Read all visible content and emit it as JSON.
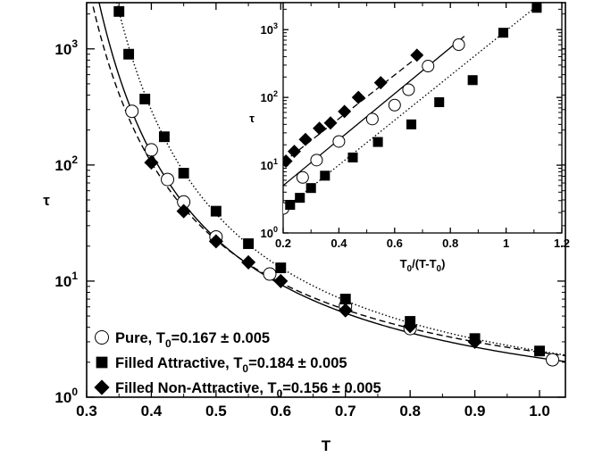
{
  "chart_data": [
    {
      "type": "scatter",
      "role": "main",
      "xlabel": "T",
      "ylabel": "τ",
      "xlim": [
        0.3,
        1.04
      ],
      "ylim": [
        1,
        2500
      ],
      "y_scale": "log",
      "x_ticks": [
        "0.3",
        "0.4",
        "0.5",
        "0.6",
        "0.7",
        "0.8",
        "0.9",
        "1.0"
      ],
      "x_tick_values": [
        0.3,
        0.4,
        0.5,
        0.6,
        0.7,
        0.8,
        0.9,
        1.0
      ],
      "y_ticks": [
        {
          "value": 1,
          "base": "10",
          "exp": "0"
        },
        {
          "value": 10,
          "base": "10",
          "exp": "1"
        },
        {
          "value": 100,
          "base": "10",
          "exp": "2"
        },
        {
          "value": 1000,
          "base": "10",
          "exp": "3"
        }
      ],
      "legend_position": "bottom-left",
      "grid": false,
      "series": [
        {
          "key": "pure",
          "marker": "open-circle",
          "curve": "solid",
          "legend": {
            "prefix": "Pure, T",
            "sub": "0",
            "suffix": "=0.167 ± 0.005"
          },
          "T0": 0.167,
          "x": [
            0.37,
            0.4,
            0.425,
            0.45,
            0.5,
            0.583,
            0.7,
            0.8,
            1.02
          ],
          "y": [
            290,
            135,
            75,
            48,
            24,
            11.5,
            6.1,
            3.9,
            2.1
          ]
        },
        {
          "key": "filled-attractive",
          "marker": "filled-square",
          "curve": "dotted",
          "legend": {
            "prefix": "Filled Attractive, T",
            "sub": "0",
            "suffix": "=0.184 ± 0.005"
          },
          "T0": 0.184,
          "x": [
            0.35,
            0.365,
            0.39,
            0.42,
            0.45,
            0.5,
            0.55,
            0.6,
            0.7,
            0.8,
            0.9,
            1.0
          ],
          "y": [
            2100,
            900,
            370,
            175,
            85,
            40,
            21,
            13,
            7,
            4.5,
            3.2,
            2.5
          ]
        },
        {
          "key": "filled-non-attractive",
          "marker": "filled-diamond",
          "curve": "dashed",
          "legend": {
            "prefix": "Filled Non-Attractive, T",
            "sub": "0",
            "suffix": "=0.156 ± 0.005"
          },
          "T0": 0.156,
          "x": [
            0.4,
            0.45,
            0.5,
            0.55,
            0.6,
            0.7,
            0.8,
            0.9
          ],
          "y": [
            105,
            40,
            22,
            14.5,
            10,
            5.6,
            4.1,
            3.0
          ]
        }
      ]
    },
    {
      "type": "scatter",
      "role": "inset",
      "xlabel": {
        "prefix": "T",
        "sub": "0",
        "mid": "/(T-T",
        "sub2": "0",
        "suffix": ")"
      },
      "ylabel": "τ",
      "xlim": [
        0.2,
        1.2
      ],
      "ylim": [
        1,
        2500
      ],
      "y_scale": "log",
      "x_ticks": [
        "0.2",
        "0.4",
        "0.6",
        "0.8",
        "1",
        "1.2"
      ],
      "x_tick_values": [
        0.2,
        0.4,
        0.6,
        0.8,
        1.0,
        1.2
      ],
      "y_ticks": [
        {
          "value": 1,
          "base": "10",
          "exp": "0"
        },
        {
          "value": 10,
          "base": "10",
          "exp": "1"
        },
        {
          "value": 100,
          "base": "10",
          "exp": "2"
        },
        {
          "value": 1000,
          "base": "10",
          "exp": "3"
        }
      ],
      "series": [
        {
          "key": "pure",
          "marker": "open-circle",
          "fit": "solid",
          "x": [
            0.2,
            0.27,
            0.32,
            0.4,
            0.52,
            0.6,
            0.65,
            0.72,
            0.83
          ],
          "y": [
            2.3,
            6.6,
            11.9,
            22.4,
            48,
            77,
            130,
            290,
            600
          ]
        },
        {
          "key": "filled-attractive",
          "marker": "filled-square",
          "fit": "dotted",
          "x": [
            0.225,
            0.26,
            0.3,
            0.35,
            0.45,
            0.54,
            0.66,
            0.76,
            0.88,
            0.99,
            1.11
          ],
          "y": [
            2.6,
            3.3,
            4.6,
            7.0,
            13.0,
            22.0,
            40,
            85,
            180,
            900,
            2100
          ]
        },
        {
          "key": "filled-non-attractive",
          "marker": "filled-diamond",
          "fit": "dashed",
          "x": [
            0.21,
            0.24,
            0.28,
            0.33,
            0.37,
            0.42,
            0.47,
            0.55,
            0.68
          ],
          "y": [
            11.5,
            16,
            24,
            35,
            42,
            62,
            100,
            165,
            420
          ]
        }
      ],
      "fit_lines": [
        {
          "key": "pure",
          "style": "solid",
          "x": [
            0.2,
            0.85
          ],
          "y": [
            5.0,
            800
          ]
        },
        {
          "key": "filled-attractive",
          "style": "dotted",
          "x": [
            0.2,
            1.12
          ],
          "y": [
            2.2,
            2400
          ]
        },
        {
          "key": "filled-non-attractive",
          "style": "dashed",
          "x": [
            0.2,
            0.7
          ],
          "y": [
            11,
            450
          ]
        }
      ]
    }
  ]
}
